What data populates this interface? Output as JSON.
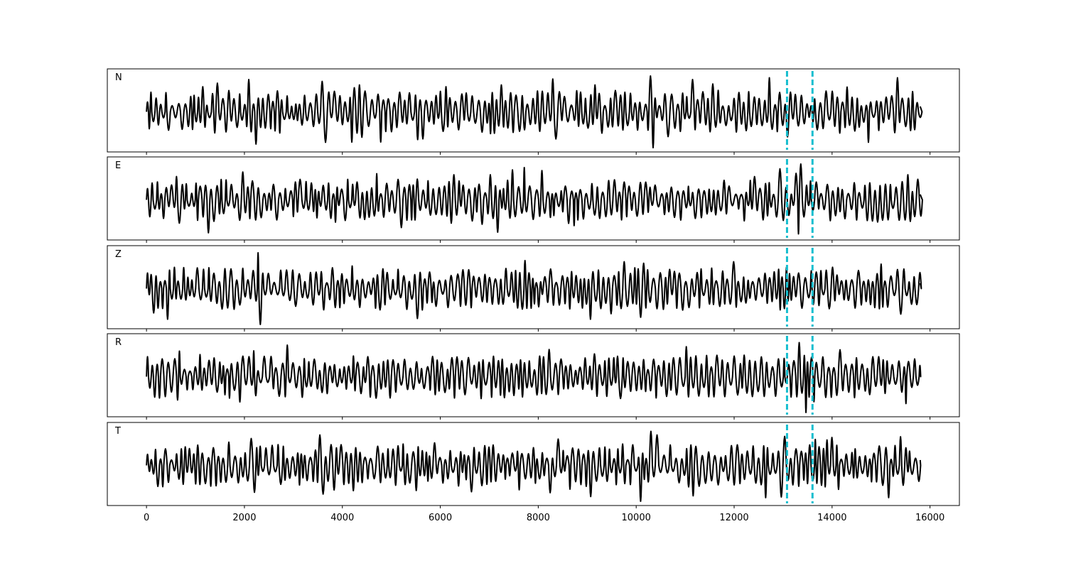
{
  "chart_data": {
    "type": "line",
    "title": "",
    "xlabel": "",
    "ylabel": "",
    "xlim": [
      -800,
      16600
    ],
    "x_ticks": [
      0,
      2000,
      4000,
      6000,
      8000,
      10000,
      12000,
      14000,
      16000
    ],
    "x_tick_labels": [
      "0",
      "2000",
      "4000",
      "6000",
      "8000",
      "10000",
      "12000",
      "14000",
      "16000"
    ],
    "signal_x_range": [
      0,
      15800
    ],
    "line_color": "#000000",
    "marker_color": "#17becf",
    "vertical_markers": [
      13080,
      13600
    ],
    "grid": false,
    "legend": "none",
    "panels": [
      {
        "label": "N",
        "approx_amplitude_range": [
          -1.0,
          1.0
        ],
        "burst_peaks": [
          {
            "x": 1150,
            "y": 0.7
          },
          {
            "x": 1450,
            "y": 0.8
          },
          {
            "x": 2100,
            "y": 0.9
          },
          {
            "x": 2250,
            "y": -0.9
          },
          {
            "x": 3600,
            "y": 0.85
          },
          {
            "x": 3650,
            "y": -0.85
          },
          {
            "x": 4400,
            "y": 0.75
          },
          {
            "x": 6150,
            "y": 0.7
          },
          {
            "x": 7250,
            "y": 0.75
          },
          {
            "x": 9150,
            "y": 0.75
          },
          {
            "x": 10250,
            "y": 1.0
          },
          {
            "x": 10350,
            "y": -1.0
          },
          {
            "x": 11200,
            "y": 0.9
          },
          {
            "x": 12700,
            "y": 0.95
          },
          {
            "x": 13700,
            "y": -0.5
          },
          {
            "x": 14700,
            "y": -0.85
          },
          {
            "x": 15300,
            "y": 0.95
          }
        ]
      },
      {
        "label": "E",
        "approx_amplitude_range": [
          -1.0,
          1.0
        ],
        "burst_peaks": [
          {
            "x": 600,
            "y": 0.65
          },
          {
            "x": 630,
            "y": -0.65
          },
          {
            "x": 6250,
            "y": 0.7
          },
          {
            "x": 6250,
            "y": -0.65
          },
          {
            "x": 7000,
            "y": 0.7
          },
          {
            "x": 12450,
            "y": 0.65
          },
          {
            "x": 13300,
            "y": -0.95
          },
          {
            "x": 13400,
            "y": 1.0
          },
          {
            "x": 15500,
            "y": 0.7
          },
          {
            "x": 15600,
            "y": -0.6
          }
        ]
      },
      {
        "label": "Z",
        "approx_amplitude_range": [
          -1.0,
          1.0
        ],
        "burst_peaks": [
          {
            "x": 2260,
            "y": 1.0
          },
          {
            "x": 2290,
            "y": -1.0
          },
          {
            "x": 1750,
            "y": 0.55
          },
          {
            "x": 7800,
            "y": -0.55
          },
          {
            "x": 9500,
            "y": -0.7
          },
          {
            "x": 10050,
            "y": -0.8
          },
          {
            "x": 9800,
            "y": 0.75
          },
          {
            "x": 11000,
            "y": -0.6
          },
          {
            "x": 11950,
            "y": 0.75
          },
          {
            "x": 13750,
            "y": 0.5
          }
        ]
      },
      {
        "label": "R",
        "approx_amplitude_range": [
          -1.0,
          1.0
        ],
        "burst_peaks": [
          {
            "x": 600,
            "y": -0.65
          },
          {
            "x": 600,
            "y": 0.5
          },
          {
            "x": 4700,
            "y": -0.6
          },
          {
            "x": 6300,
            "y": 0.55
          },
          {
            "x": 9400,
            "y": -0.55
          },
          {
            "x": 12200,
            "y": 0.6
          },
          {
            "x": 13300,
            "y": 0.95
          },
          {
            "x": 13450,
            "y": -1.0
          },
          {
            "x": 13600,
            "y": -0.7
          },
          {
            "x": 14200,
            "y": 0.75
          },
          {
            "x": 15500,
            "y": -0.75
          }
        ]
      },
      {
        "label": "T",
        "approx_amplitude_range": [
          -1.0,
          1.0
        ],
        "burst_peaks": [
          {
            "x": 2100,
            "y": 0.75
          },
          {
            "x": 2200,
            "y": -0.75
          },
          {
            "x": 3600,
            "y": 0.85
          },
          {
            "x": 3650,
            "y": -0.8
          },
          {
            "x": 10100,
            "y": -1.0
          },
          {
            "x": 10300,
            "y": 0.95
          },
          {
            "x": 10450,
            "y": 0.85
          },
          {
            "x": 11200,
            "y": -0.85
          },
          {
            "x": 12650,
            "y": -0.9
          },
          {
            "x": 13700,
            "y": -0.5
          },
          {
            "x": 15200,
            "y": -0.9
          },
          {
            "x": 15400,
            "y": 0.8
          }
        ]
      }
    ]
  }
}
